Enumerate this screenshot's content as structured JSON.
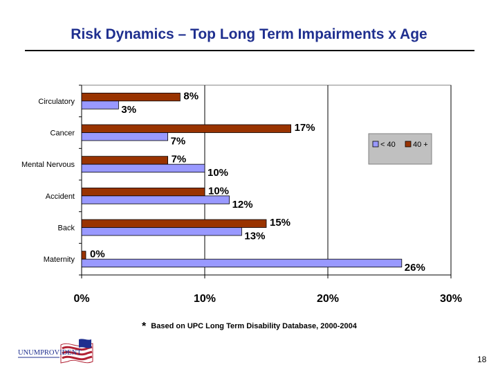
{
  "slide": {
    "title": "Risk Dynamics – Top Long Term Impairments x Age",
    "footnote_mark": "*",
    "footnote": "Based on UPC Long Term Disability Database, 2000-2004",
    "page_number": "18",
    "logo_text": "UNUMPROVIDENT",
    "logo_icon": "american-flag-icon"
  },
  "chart_data": {
    "type": "bar",
    "orientation": "horizontal",
    "categories": [
      "Circulatory",
      "Cancer",
      "Mental Nervous",
      "Accident",
      "Back",
      "Maternity"
    ],
    "series": [
      {
        "name": "< 40",
        "color": "#9999ff",
        "values": [
          3,
          7,
          10,
          12,
          13,
          26
        ]
      },
      {
        "name": "40 +",
        "color": "#993300",
        "values": [
          8,
          17,
          7,
          10,
          15,
          0
        ]
      }
    ],
    "value_labels": {
      "< 40": [
        "3%",
        "7%",
        "10%",
        "12%",
        "13%",
        "26%"
      ],
      "40 +": [
        "8%",
        "17%",
        "7%",
        "10%",
        "15%",
        "0%"
      ]
    },
    "xlim": [
      0,
      30
    ],
    "x_ticks": [
      0,
      10,
      20,
      30
    ],
    "x_tick_labels": [
      "0%",
      "10%",
      "20%",
      "30%"
    ],
    "grid": "vertical",
    "legend_position": "right",
    "legend_background": "#c0c0c0"
  }
}
